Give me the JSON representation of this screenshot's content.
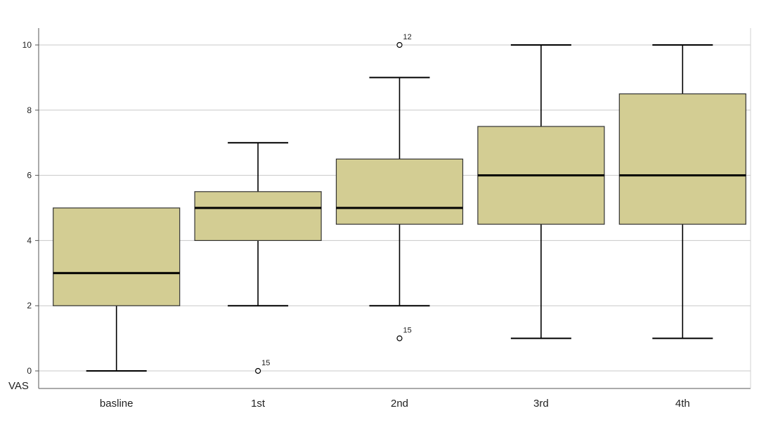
{
  "chart_data": {
    "type": "boxplot",
    "ylabel": "VAS",
    "ylim": [
      0,
      10
    ],
    "yticks": [
      0,
      2,
      4,
      6,
      8,
      10
    ],
    "grid": true,
    "box_color": "#d3cd93",
    "categories": [
      "basline",
      "1st",
      "2nd",
      "3rd",
      "4th"
    ],
    "boxes": [
      {
        "category": "basline",
        "whisker_low": 0,
        "q1": 2,
        "median": 3,
        "q3": 5,
        "whisker_high": 5,
        "outliers": []
      },
      {
        "category": "1st",
        "whisker_low": 2,
        "q1": 4,
        "median": 5,
        "q3": 5.5,
        "whisker_high": 7,
        "outliers": [
          {
            "value": 0,
            "label": "15"
          }
        ]
      },
      {
        "category": "2nd",
        "whisker_low": 2,
        "q1": 4.5,
        "median": 5,
        "q3": 6.5,
        "whisker_high": 9,
        "outliers": [
          {
            "value": 10,
            "label": "12"
          },
          {
            "value": 1,
            "label": "15"
          }
        ]
      },
      {
        "category": "3rd",
        "whisker_low": 1,
        "q1": 4.5,
        "median": 6,
        "q3": 7.5,
        "whisker_high": 10,
        "outliers": []
      },
      {
        "category": "4th",
        "whisker_low": 1,
        "q1": 4.5,
        "median": 6,
        "q3": 8.5,
        "whisker_high": 10,
        "outliers": []
      }
    ]
  }
}
